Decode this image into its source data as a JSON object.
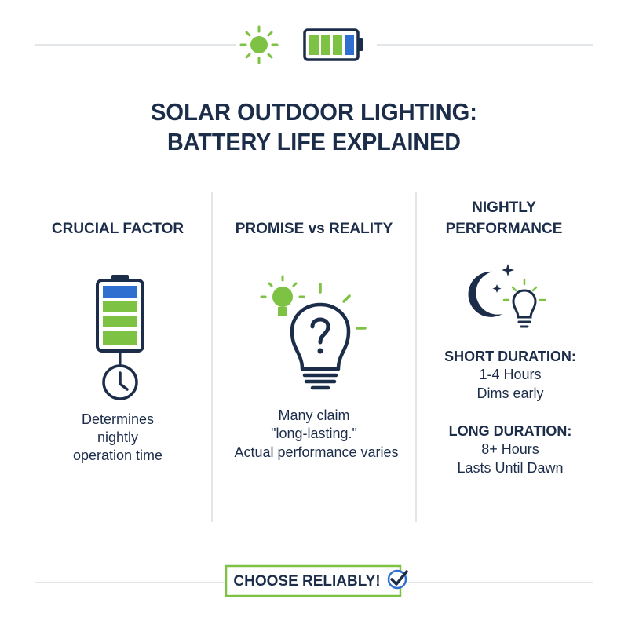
{
  "title": [
    "SOLAR OUTDOOR LIGHTING:",
    "BATTERY LIFE EXPLAINED"
  ],
  "columns": [
    {
      "heading": [
        "CRUCIAL FACTOR"
      ],
      "text": [
        "Determines",
        "nightly",
        "operation time"
      ]
    },
    {
      "heading": [
        "PROMISE vs REALITY"
      ],
      "text": [
        "Many claim",
        "\"long-lasting.\"",
        "Actual performance varies"
      ]
    },
    {
      "heading": [
        "NIGHTLY",
        "PERFORMANCE"
      ],
      "blocks": [
        {
          "label": "SHORT DURATION:",
          "lines": [
            "1-4 Hours",
            "Dims early"
          ]
        },
        {
          "label": "LONG DURATION:",
          "lines": [
            "8+ Hours",
            "Lasts Until Dawn"
          ]
        }
      ]
    }
  ],
  "footer": {
    "button": "CHOOSE RELIABLY!"
  }
}
